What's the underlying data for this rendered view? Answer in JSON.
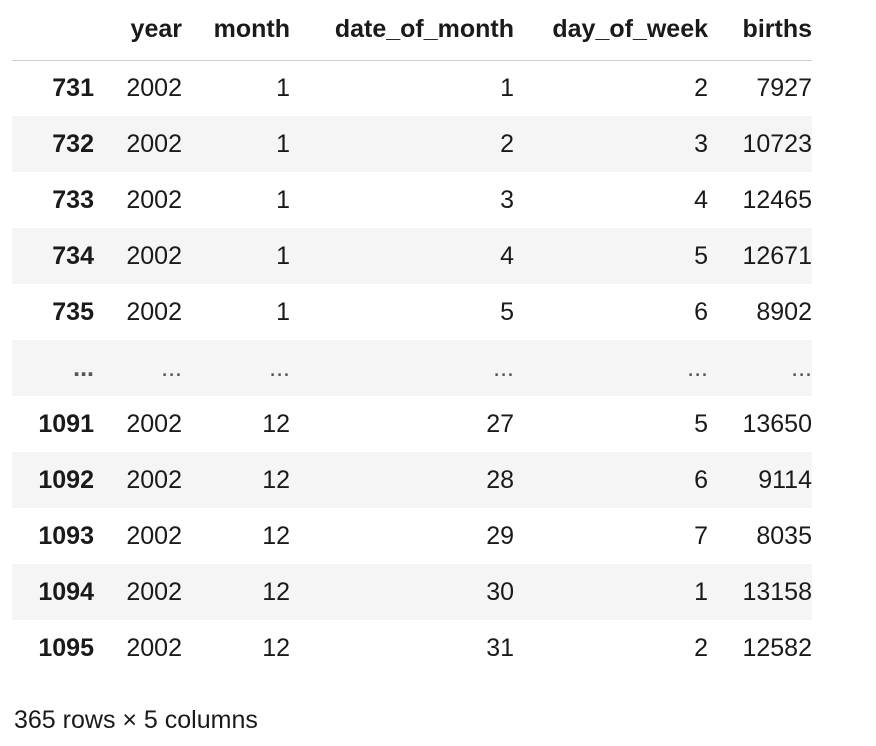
{
  "table": {
    "columns": [
      "",
      "year",
      "month",
      "date_of_month",
      "day_of_week",
      "births"
    ],
    "rows": [
      {
        "index": "731",
        "year": "2002",
        "month": "1",
        "date_of_month": "1",
        "day_of_week": "2",
        "births": "7927"
      },
      {
        "index": "732",
        "year": "2002",
        "month": "1",
        "date_of_month": "2",
        "day_of_week": "3",
        "births": "10723"
      },
      {
        "index": "733",
        "year": "2002",
        "month": "1",
        "date_of_month": "3",
        "day_of_week": "4",
        "births": "12465"
      },
      {
        "index": "734",
        "year": "2002",
        "month": "1",
        "date_of_month": "4",
        "day_of_week": "5",
        "births": "12671"
      },
      {
        "index": "735",
        "year": "2002",
        "month": "1",
        "date_of_month": "5",
        "day_of_week": "6",
        "births": "8902"
      },
      {
        "index": "...",
        "year": "...",
        "month": "...",
        "date_of_month": "...",
        "day_of_week": "...",
        "births": "..."
      },
      {
        "index": "1091",
        "year": "2002",
        "month": "12",
        "date_of_month": "27",
        "day_of_week": "5",
        "births": "13650"
      },
      {
        "index": "1092",
        "year": "2002",
        "month": "12",
        "date_of_month": "28",
        "day_of_week": "6",
        "births": "9114"
      },
      {
        "index": "1093",
        "year": "2002",
        "month": "12",
        "date_of_month": "29",
        "day_of_week": "7",
        "births": "8035"
      },
      {
        "index": "1094",
        "year": "2002",
        "month": "12",
        "date_of_month": "30",
        "day_of_week": "1",
        "births": "13158"
      },
      {
        "index": "1095",
        "year": "2002",
        "month": "12",
        "date_of_month": "31",
        "day_of_week": "2",
        "births": "12582"
      }
    ]
  },
  "footer": "365 rows × 5 columns"
}
